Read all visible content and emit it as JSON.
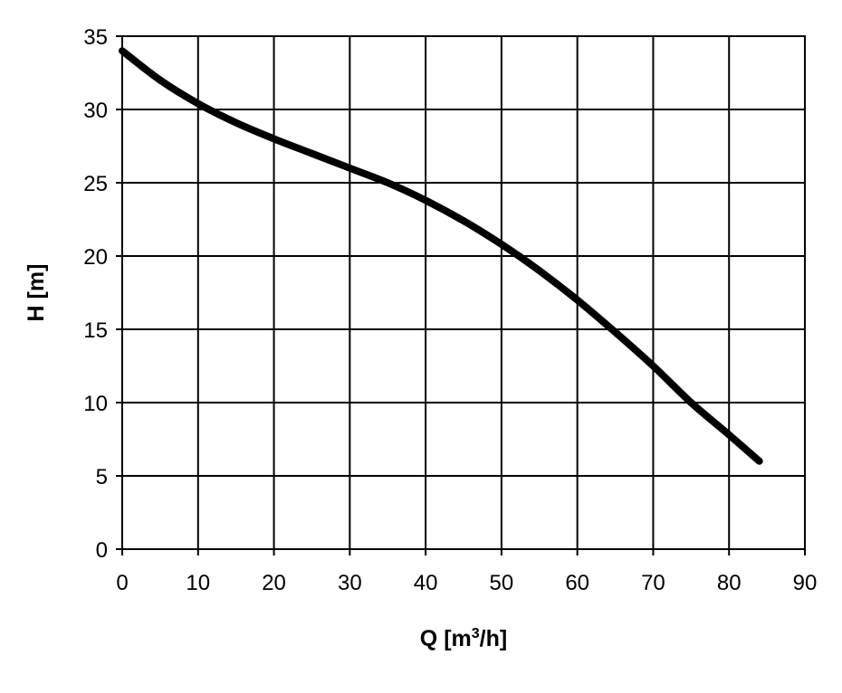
{
  "chart_data": {
    "type": "line",
    "title": "",
    "xlabel": "Q [m",
    "xlabel_sup": "3",
    "xlabel_end": "/h]",
    "ylabel": "H [m]",
    "xlim": [
      0,
      90
    ],
    "ylim": [
      0,
      35
    ],
    "x_ticks": [
      0,
      10,
      20,
      30,
      40,
      50,
      60,
      70,
      80,
      90
    ],
    "y_ticks": [
      0,
      5,
      10,
      15,
      20,
      25,
      30,
      35
    ],
    "grid": true,
    "series": [
      {
        "x": [
          0,
          5,
          10,
          15,
          20,
          25,
          30,
          35,
          40,
          45,
          50,
          55,
          60,
          65,
          70,
          75,
          80,
          84
        ],
        "y": [
          34,
          32,
          30.4,
          29.1,
          28,
          27,
          26,
          25,
          23.8,
          22.4,
          20.8,
          19,
          17,
          14.8,
          12.5,
          10,
          7.8,
          6
        ]
      }
    ]
  }
}
